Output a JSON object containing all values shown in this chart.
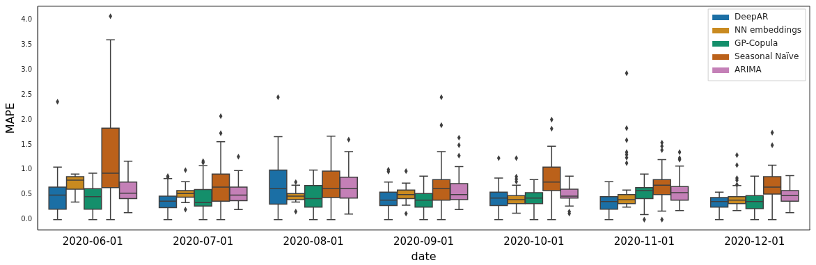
{
  "chart_data": {
    "type": "box",
    "xlabel": "date",
    "ylabel": "MAPE",
    "categories": [
      "2020-06-01",
      "2020-07-01",
      "2020-08-01",
      "2020-09-01",
      "2020-10-01",
      "2020-11-01",
      "2020-12-01"
    ],
    "ylim": [
      -0.21,
      4.27
    ],
    "yticks": [
      {
        "value": 0,
        "label": "0.0"
      },
      {
        "value": 0.5,
        "label": "0.5"
      },
      {
        "value": 1,
        "label": "1.0"
      },
      {
        "value": 1.5,
        "label": "1.5"
      },
      {
        "value": 2,
        "label": "2.0"
      },
      {
        "value": 2.5,
        "label": "2.5"
      },
      {
        "value": 3,
        "label": "3.0"
      },
      {
        "value": 3.5,
        "label": "3.5"
      },
      {
        "value": 4,
        "label": "4.0"
      }
    ],
    "legend": "top right",
    "marker": "diamond",
    "grid": false,
    "series": [
      {
        "name": "DeepAR",
        "color": "#1b6fa5",
        "boxes": [
          {
            "low": 0,
            "q1": 0.21,
            "median": 0.49,
            "q3": 0.65,
            "high": 1.05,
            "outliers": [
              2.36
            ]
          },
          {
            "low": 0,
            "q1": 0.24,
            "median": 0.37,
            "q3": 0.47,
            "high": 0.82,
            "outliers": [
              0.85,
              0.87
            ]
          },
          {
            "low": 0,
            "q1": 0.31,
            "median": 0.62,
            "q3": 0.99,
            "high": 1.66,
            "outliers": [
              2.45
            ]
          },
          {
            "low": 0,
            "q1": 0.28,
            "median": 0.39,
            "q3": 0.55,
            "high": 0.75,
            "outliers": [
              0.96,
              1.0
            ]
          },
          {
            "low": 0,
            "q1": 0.28,
            "median": 0.43,
            "q3": 0.55,
            "high": 0.83,
            "outliers": [
              1.23
            ]
          },
          {
            "low": 0,
            "q1": 0.21,
            "median": 0.36,
            "q3": 0.46,
            "high": 0.76
          },
          {
            "low": 0,
            "q1": 0.25,
            "median": 0.36,
            "q3": 0.44,
            "high": 0.55
          }
        ]
      },
      {
        "name": "NN embeddings",
        "color": "#c98a20",
        "boxes": [
          {
            "low": 0.35,
            "q1": 0.61,
            "median": 0.79,
            "q3": 0.86,
            "high": 0.91
          },
          {
            "low": 0.34,
            "q1": 0.45,
            "median": 0.52,
            "q3": 0.58,
            "high": 0.76,
            "outliers": [
              0.2,
              0.99
            ]
          },
          {
            "low": 0.35,
            "q1": 0.4,
            "median": 0.47,
            "q3": 0.52,
            "high": 0.69,
            "outliers": [
              0.16,
              0.75
            ]
          },
          {
            "low": 0.29,
            "q1": 0.42,
            "median": 0.5,
            "q3": 0.59,
            "high": 0.73,
            "outliers": [
              0.12,
              0.97
            ]
          },
          {
            "low": 0.13,
            "q1": 0.32,
            "median": 0.4,
            "q3": 0.48,
            "high": 0.69,
            "outliers": [
              0.76,
              0.81,
              0.86,
              1.23
            ]
          },
          {
            "low": 0.25,
            "q1": 0.32,
            "median": 0.4,
            "q3": 0.5,
            "high": 0.59,
            "outliers": [
              1.13,
              1.24,
              1.3,
              1.35,
              1.59,
              1.83,
              2.93
            ]
          },
          {
            "low": 0.18,
            "q1": 0.32,
            "median": 0.39,
            "q3": 0.46,
            "high": 0.68,
            "outliers": [
              0.7,
              0.79,
              0.83,
              1.09,
              1.29
            ]
          }
        ]
      },
      {
        "name": "GP-Copula",
        "color": "#148f6b",
        "boxes": [
          {
            "low": 0,
            "q1": 0.21,
            "median": 0.46,
            "q3": 0.62,
            "high": 0.93
          },
          {
            "low": 0,
            "q1": 0.27,
            "median": 0.34,
            "q3": 0.6,
            "high": 1.08,
            "outliers": [
              1.14,
              1.17
            ]
          },
          {
            "low": 0,
            "q1": 0.25,
            "median": 0.42,
            "q3": 0.68,
            "high": 0.99
          },
          {
            "low": 0,
            "q1": 0.25,
            "median": 0.39,
            "q3": 0.52,
            "high": 0.87
          },
          {
            "low": 0,
            "q1": 0.32,
            "median": 0.43,
            "q3": 0.54,
            "high": 0.8
          },
          {
            "low": 0.1,
            "q1": 0.42,
            "median": 0.58,
            "q3": 0.64,
            "high": 0.91,
            "outliers": [
              0
            ]
          },
          {
            "low": 0,
            "q1": 0.22,
            "median": 0.36,
            "q3": 0.48,
            "high": 0.87
          }
        ]
      },
      {
        "name": "Seasonal Naïve",
        "color": "#bb611a",
        "boxes": [
          {
            "low": 0,
            "q1": 0.64,
            "median": 0.93,
            "q3": 1.83,
            "high": 3.6,
            "outliers": [
              4.07
            ]
          },
          {
            "low": 0,
            "q1": 0.37,
            "median": 0.65,
            "q3": 0.91,
            "high": 1.56,
            "outliers": [
              1.73,
              2.07
            ]
          },
          {
            "low": 0,
            "q1": 0.44,
            "median": 0.62,
            "q3": 0.97,
            "high": 1.67
          },
          {
            "low": 0,
            "q1": 0.39,
            "median": 0.62,
            "q3": 0.8,
            "high": 1.36,
            "outliers": [
              1.89,
              2.45
            ]
          },
          {
            "low": 0,
            "q1": 0.58,
            "median": 0.75,
            "q3": 1.05,
            "high": 1.47,
            "outliers": [
              1.82,
              2.0
            ]
          },
          {
            "low": 0.17,
            "q1": 0.5,
            "median": 0.69,
            "q3": 0.8,
            "high": 1.2,
            "outliers": [
              0,
              1.39,
              1.47,
              1.54
            ]
          },
          {
            "low": 0,
            "q1": 0.51,
            "median": 0.65,
            "q3": 0.86,
            "high": 1.09,
            "outliers": [
              1.49,
              1.74
            ]
          }
        ]
      },
      {
        "name": "ARIMA",
        "color": "#c480b7",
        "boxes": [
          {
            "low": 0.14,
            "q1": 0.42,
            "median": 0.53,
            "q3": 0.75,
            "high": 1.17
          },
          {
            "low": 0.2,
            "q1": 0.38,
            "median": 0.49,
            "q3": 0.65,
            "high": 0.98,
            "outliers": [
              1.26
            ]
          },
          {
            "low": 0.11,
            "q1": 0.43,
            "median": 0.62,
            "q3": 0.85,
            "high": 1.36,
            "outliers": [
              1.6
            ]
          },
          {
            "low": 0.2,
            "q1": 0.4,
            "median": 0.5,
            "q3": 0.72,
            "high": 1.06,
            "outliers": [
              1.28,
              1.49,
              1.64
            ]
          },
          {
            "low": 0.27,
            "q1": 0.43,
            "median": 0.47,
            "q3": 0.61,
            "high": 0.87,
            "outliers": [
              0.12,
              0.16
            ]
          },
          {
            "low": 0.18,
            "q1": 0.39,
            "median": 0.54,
            "q3": 0.66,
            "high": 1.07,
            "outliers": [
              1.2,
              1.23,
              1.35
            ]
          },
          {
            "low": 0.14,
            "q1": 0.37,
            "median": 0.48,
            "q3": 0.58,
            "high": 0.88
          }
        ]
      }
    ]
  }
}
